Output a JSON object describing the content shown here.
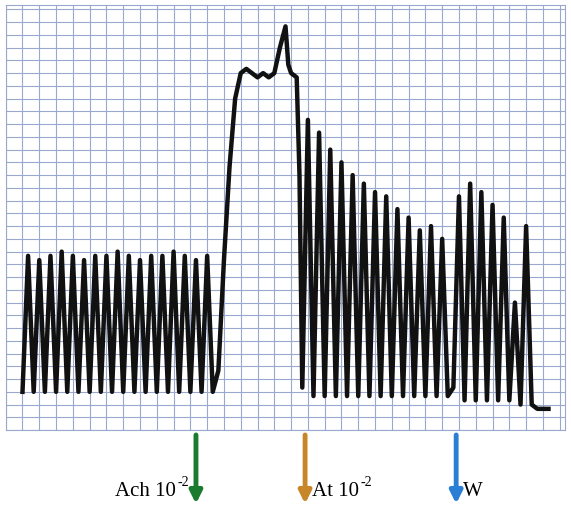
{
  "chart_data": {
    "type": "line",
    "color": "#111111",
    "grid": true,
    "tick_labels": false,
    "x": [
      3,
      4,
      5,
      6,
      7,
      8,
      9,
      10,
      11,
      12,
      13,
      14,
      15,
      16,
      17,
      18,
      19,
      20,
      21,
      22,
      23,
      24,
      25,
      26,
      27,
      28,
      29,
      30,
      31,
      32,
      33,
      34,
      35,
      36,
      37,
      38,
      39,
      40,
      41,
      42,
      43,
      44,
      45,
      46,
      47,
      48,
      49,
      50,
      50.5,
      51,
      52,
      52.5,
      53,
      54,
      55,
      56,
      57,
      58,
      59,
      60,
      61,
      62,
      63,
      64,
      65,
      66,
      67,
      68,
      69,
      70,
      71,
      72,
      73,
      74,
      75,
      76,
      77,
      78,
      79,
      80,
      81,
      82,
      83,
      84,
      85,
      86,
      87,
      88,
      89,
      90,
      91,
      92,
      93,
      94,
      95,
      97
    ],
    "values": [
      9,
      41,
      9,
      40,
      9,
      41,
      9,
      42,
      9,
      41,
      9,
      40,
      9,
      41,
      9,
      41,
      9,
      42,
      9,
      41,
      9,
      40,
      9,
      41,
      9,
      41,
      9,
      42,
      9,
      41,
      9,
      40,
      9,
      41,
      9,
      14,
      40,
      62,
      78,
      84,
      85,
      84,
      83,
      84,
      83,
      84,
      90,
      95,
      86,
      84,
      83,
      60,
      10,
      73,
      8,
      70,
      8,
      66,
      8,
      63,
      8,
      60,
      8,
      58,
      8,
      56,
      8,
      55,
      8,
      52,
      8,
      50,
      8,
      47,
      8,
      48,
      8,
      45,
      8,
      10,
      55,
      7,
      58,
      7,
      56,
      7,
      53,
      7,
      50,
      7,
      30,
      6,
      48,
      6,
      5,
      5
    ],
    "xlim": [
      0,
      100
    ],
    "ylim": [
      0,
      100
    ],
    "xticks": [
      0,
      3,
      6,
      9,
      12,
      15,
      18,
      21,
      24,
      27,
      30,
      33,
      36,
      39,
      42,
      45,
      48,
      51,
      54,
      57,
      60,
      63,
      66,
      69,
      72,
      75,
      78,
      81,
      84,
      87,
      90,
      93,
      96,
      99
    ],
    "yticks": [
      0,
      3,
      6,
      9,
      12,
      15,
      18,
      21,
      24,
      27,
      30,
      33,
      36,
      39,
      42,
      45,
      48,
      51,
      54,
      57,
      60,
      63,
      66,
      69,
      72,
      75,
      78,
      81,
      84,
      87,
      90,
      93,
      96,
      99
    ],
    "annotations": [
      {
        "text": "Ach 10",
        "superscript": "-2",
        "x": 34,
        "color": "#1a7a2e"
      },
      {
        "text": "At 10",
        "superscript": "-2",
        "x": 53.5,
        "color": "#c8862a"
      },
      {
        "text": "W",
        "x": 80.5,
        "color": "#2a7fd4"
      }
    ]
  }
}
